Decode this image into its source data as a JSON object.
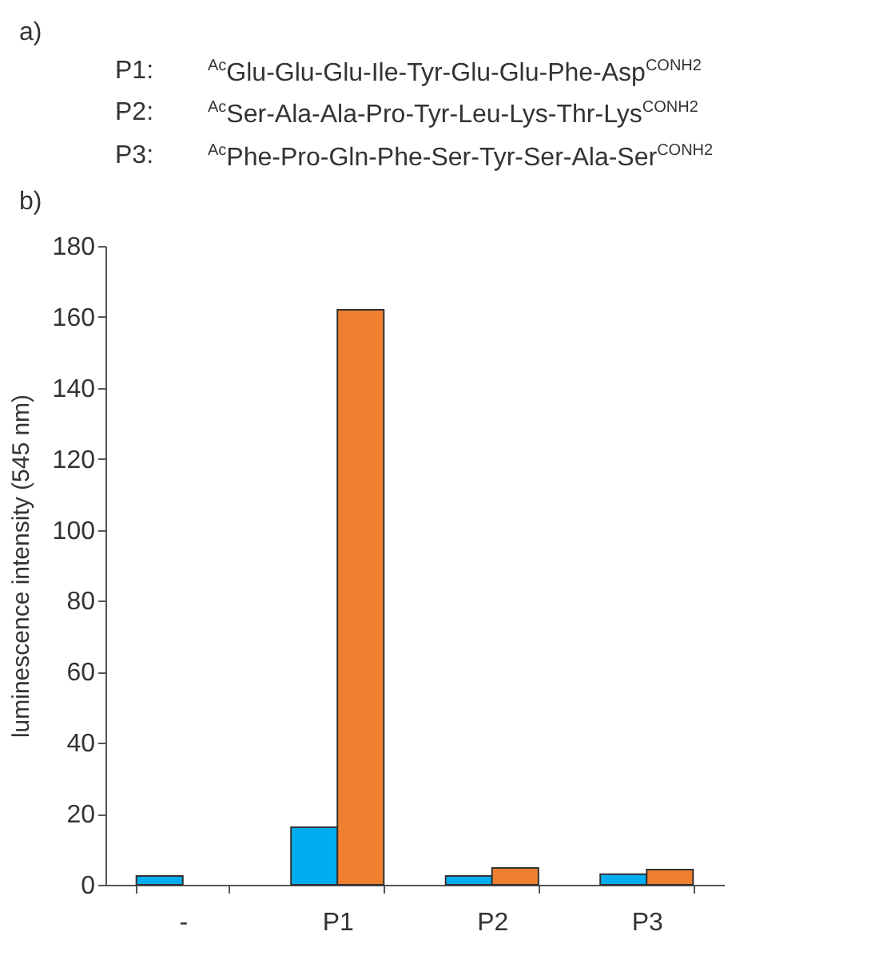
{
  "chart_data": {
    "type": "bar",
    "annotations": [
      "a)",
      "P1:",
      "$^{Ac}$Glu-Glu-Glu-Ile-Tyr-Glu-Glu-Phe-Asp$^{CONH2}$",
      "P2:",
      "$^{Ac}$Ser-Ala-Ala-Pro-Tyr-Leu-Lys-Thr-Lys$^{CONH2}$",
      "P3:",
      "$^{Ac}$Phe-Pro-Gln-Phe-Ser-Tyr-Ser-Ala-Ser$^{CONH2}$",
      "b)"
    ],
    "ylabel": "luminescence intensity (545 nm)",
    "categories": [
      "-",
      "P1",
      "P2",
      "P3"
    ],
    "series": [
      {
        "color": "#00aeef",
        "values": [
          2.5,
          16.2,
          2.5,
          3
        ]
      },
      {
        "color": "#f08030",
        "values": [
          null,
          162,
          4.7,
          4.3
        ]
      }
    ],
    "ylim": [
      0,
      180
    ],
    "yticks": [
      0,
      20,
      40,
      60,
      80,
      100,
      120,
      140,
      160,
      180
    ],
    "grid": false,
    "legend": false
  }
}
